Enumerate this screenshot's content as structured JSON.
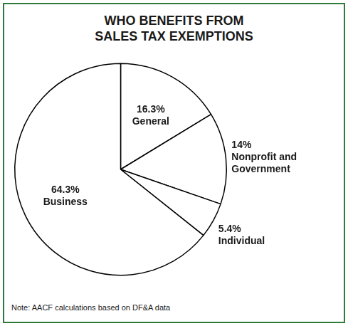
{
  "chart_data": {
    "type": "pie",
    "title": "WHO BENEFITS FROM SALES TAX EXEMPTIONS",
    "categories": [
      "General",
      "Nonprofit and Government",
      "Individual",
      "Business"
    ],
    "values": [
      16.3,
      14,
      5.4,
      64.3
    ],
    "value_labels": [
      "16.3%",
      "14%",
      "5.4%",
      "64.3%"
    ],
    "color": "#ffffff",
    "data_labels": true,
    "annotations": [
      "Note: AACF calculations based on DF&A data"
    ]
  }
}
